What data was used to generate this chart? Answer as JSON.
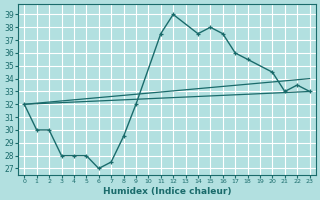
{
  "bg_color": "#b2e0e0",
  "grid_color": "#ffffff",
  "line_color": "#1a6b6b",
  "xlabel": "Humidex (Indice chaleur)",
  "xlim": [
    -0.5,
    23.5
  ],
  "ylim": [
    26.5,
    39.8
  ],
  "yticks": [
    27,
    28,
    29,
    30,
    31,
    32,
    33,
    34,
    35,
    36,
    37,
    38,
    39
  ],
  "xticks": [
    0,
    1,
    2,
    3,
    4,
    5,
    6,
    7,
    8,
    9,
    10,
    11,
    12,
    13,
    14,
    15,
    16,
    17,
    18,
    19,
    20,
    21,
    22,
    23
  ],
  "main_x": [
    0,
    1,
    2,
    3,
    4,
    5,
    6,
    7,
    8,
    9,
    11,
    12,
    14,
    15,
    16,
    17,
    18,
    20,
    21,
    22,
    23
  ],
  "main_y": [
    32,
    30,
    30,
    28,
    28,
    28,
    27,
    27.5,
    29.5,
    32,
    37.5,
    39,
    37.5,
    38,
    37.5,
    36,
    35.5,
    34.5,
    33,
    33.5,
    33
  ],
  "line2_x": [
    0,
    23
  ],
  "line2_y": [
    32,
    33
  ],
  "line3_x": [
    0,
    23
  ],
  "line3_y": [
    32,
    34
  ]
}
